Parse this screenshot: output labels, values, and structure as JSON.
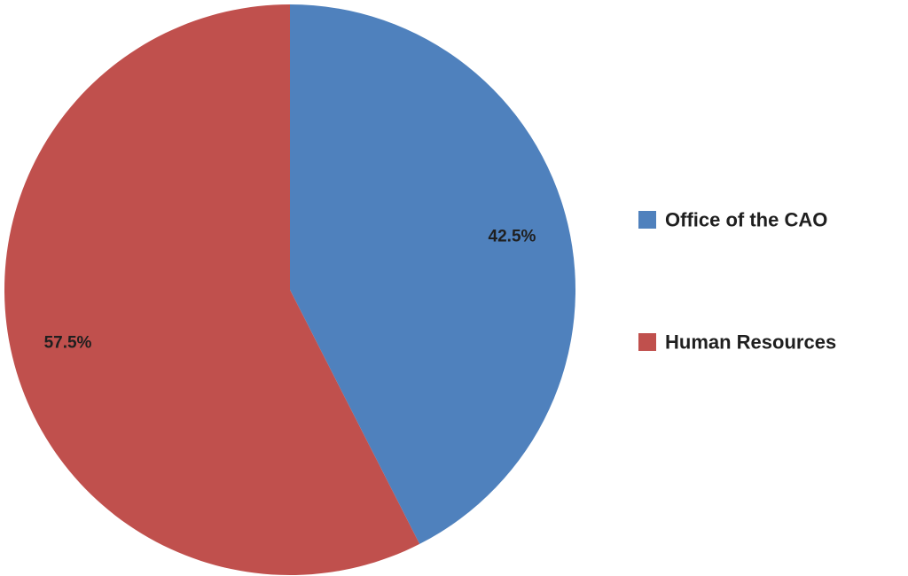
{
  "chart_data": {
    "type": "pie",
    "categories": [
      "Office of the CAO",
      "Human Resources"
    ],
    "values": [
      42.5,
      57.5
    ],
    "data_labels": [
      "42.5%",
      "57.5%"
    ],
    "colors": [
      "#4f81bd",
      "#c0504d"
    ],
    "start_angle": "12 o'clock, clockwise",
    "legend": {
      "position": "right",
      "entries": [
        "Office of the CAO",
        "Human Resources"
      ]
    }
  }
}
